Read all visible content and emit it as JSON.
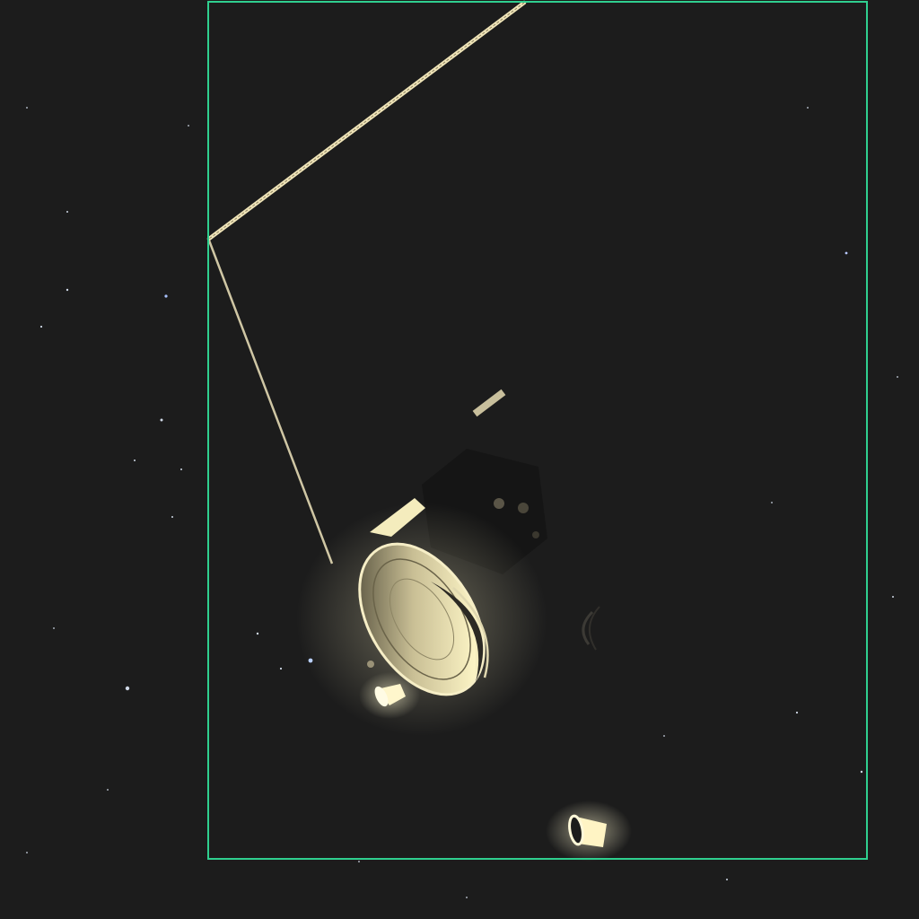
{
  "scene": {
    "subject": "spacecraft-render",
    "background": "starfield",
    "colors": {
      "background": "#1c1c1c",
      "box_stroke": "#2fcf8f",
      "highlight": "#f4eab8",
      "boom": "#d9cfa8"
    },
    "overlays": [
      {
        "kind": "bounding-box",
        "label": ""
      }
    ]
  }
}
